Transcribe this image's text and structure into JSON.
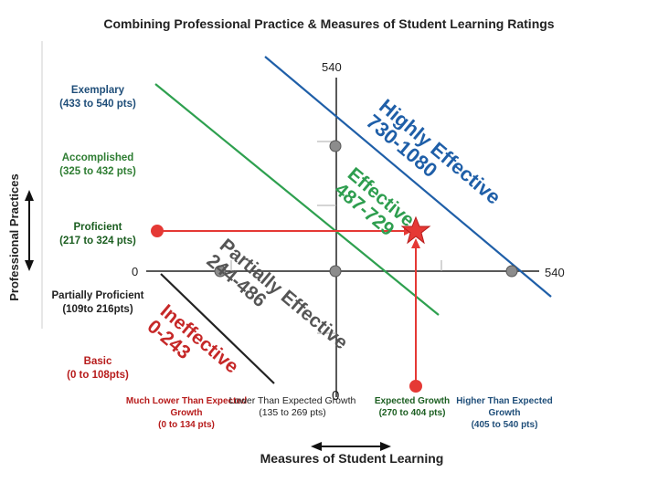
{
  "title": "Combining Professional Practice & Measures of Student Learning Ratings",
  "y_axis_label": "Professional Practices",
  "x_axis_label": "Measures of Student Learning",
  "axis_numbers": {
    "top": "540",
    "left": "0",
    "right": "540",
    "bottom": "0"
  },
  "rows": [
    {
      "name": "Exemplary",
      "range": "(433 to 540 pts)"
    },
    {
      "name": "Accomplished",
      "range": "(325 to 432 pts)"
    },
    {
      "name": "Proficient",
      "range": "(217 to 324 pts)"
    },
    {
      "name": "Partially Proficient",
      "range": "(109to 216pts)"
    },
    {
      "name": "Basic",
      "range": "(0 to 108pts)"
    }
  ],
  "columns": [
    {
      "name": "Much Lower Than Expected Growth",
      "range": "(0 to 134 pts)"
    },
    {
      "name": "Lower Than Expected Growth",
      "range": "(135 to 269 pts)"
    },
    {
      "name": "Expected Growth",
      "range": "(270 to 404 pts)"
    },
    {
      "name": "Higher Than Expected Growth",
      "range": "(405 to 540 pts)"
    }
  ],
  "zones": [
    {
      "name": "Highly Effective",
      "range": "730-1080",
      "color": "#1f5fa8"
    },
    {
      "name": "Effective",
      "range": "487-729",
      "color": "#2e9e4f"
    },
    {
      "name": "Partially Effective",
      "range": "244-486",
      "color": "#555555"
    },
    {
      "name": "Ineffective",
      "range": "0-243",
      "color": "#c62828"
    }
  ],
  "colors": {
    "highly": "#1f5fa8",
    "effective": "#2ea04f",
    "red": "#e53935",
    "axis": "#222222"
  }
}
